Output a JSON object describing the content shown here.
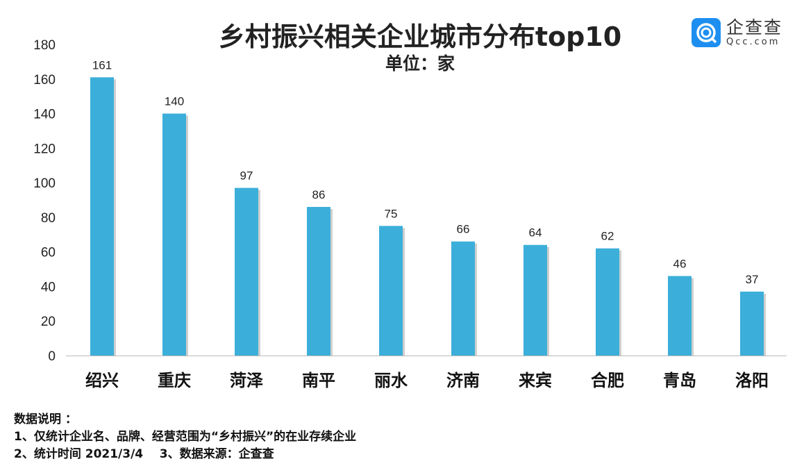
{
  "chart_data": {
    "type": "bar",
    "title": "乡村振兴相关企业城市分布top10",
    "subtitle": "单位：家",
    "categories": [
      "绍兴",
      "重庆",
      "菏泽",
      "南平",
      "丽水",
      "济南",
      "来宾",
      "合肥",
      "青岛",
      "洛阳"
    ],
    "values": [
      161,
      140,
      97,
      86,
      75,
      66,
      64,
      62,
      46,
      37
    ],
    "ylim": [
      0,
      180
    ],
    "yticks": [
      0,
      20,
      40,
      60,
      80,
      100,
      120,
      140,
      160,
      180
    ],
    "grid": false,
    "bar_color": "#3bafd9",
    "data_labels": true
  },
  "logo": {
    "name": "企查查",
    "domain": "Qcc.com",
    "color": "#1e8ff0"
  },
  "notes": {
    "heading": "数据说明 ：",
    "line1": "1、仅统计企业名、品牌、经营范围为“乡村振兴”的在业存续企业",
    "line2": "2、统计时间 2021/3/4    3、数据来源：企查查"
  }
}
